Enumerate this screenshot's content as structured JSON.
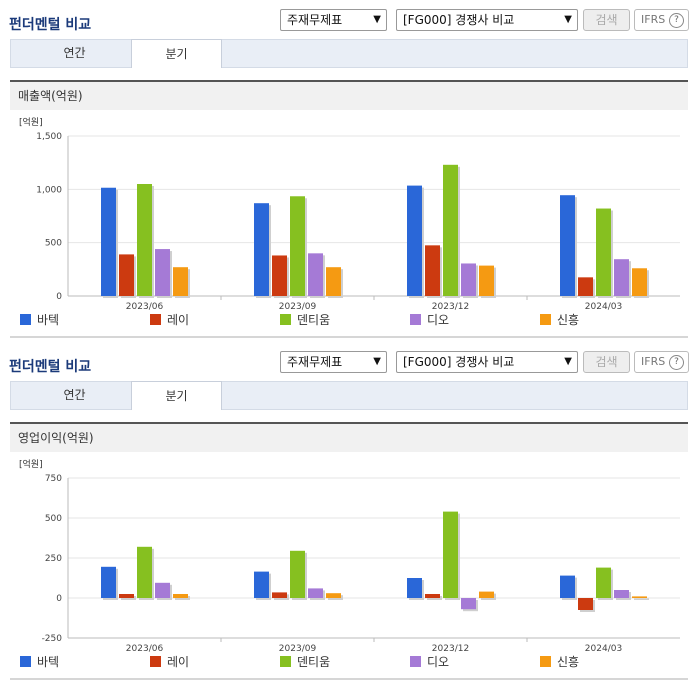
{
  "sections": [
    {
      "title": "펀더멘털 비교",
      "select_type": "주재무제표",
      "select_compare": "[FG000] 경쟁사 비교",
      "search_label": "검색",
      "ifrs_label": "IFRS",
      "help_label": "?",
      "tabs": [
        {
          "label": "연간",
          "active": false
        },
        {
          "label": "분기",
          "active": true
        }
      ],
      "metric": "매출액(억원)",
      "unit": "[억원]"
    },
    {
      "title": "펀더멘털 비교",
      "select_type": "주재무제표",
      "select_compare": "[FG000] 경쟁사 비교",
      "search_label": "검색",
      "ifrs_label": "IFRS",
      "help_label": "?",
      "tabs": [
        {
          "label": "연간",
          "active": false
        },
        {
          "label": "분기",
          "active": true
        }
      ],
      "metric": "영업이익(억원)",
      "unit": "[억원]"
    }
  ],
  "colors": {
    "바텍": "#2a67d8",
    "레이": "#cc3a10",
    "덴티움": "#86c020",
    "디오": "#a57ad6",
    "신흥": "#f59a12"
  },
  "chart_data": [
    {
      "type": "bar",
      "categories": [
        "2023/06",
        "2023/09",
        "2023/12",
        "2024/03"
      ],
      "ylim": [
        0,
        1500
      ],
      "yticks": [
        0,
        500,
        1000,
        1500
      ],
      "ytick_labels": [
        "0",
        "500",
        "1,000",
        "1,500"
      ],
      "series": [
        {
          "name": "바텍",
          "values": [
            1015,
            870,
            1035,
            945
          ]
        },
        {
          "name": "레이",
          "values": [
            390,
            380,
            475,
            175
          ]
        },
        {
          "name": "덴티움",
          "values": [
            1050,
            935,
            1230,
            820
          ]
        },
        {
          "name": "디오",
          "values": [
            440,
            400,
            305,
            345
          ]
        },
        {
          "name": "신흥",
          "values": [
            270,
            270,
            285,
            260
          ]
        }
      ],
      "grid": true,
      "legend": "bottom"
    },
    {
      "type": "bar",
      "categories": [
        "2023/06",
        "2023/09",
        "2023/12",
        "2024/03"
      ],
      "ylim": [
        -250,
        750
      ],
      "yticks": [
        -250,
        0,
        250,
        500,
        750
      ],
      "ytick_labels": [
        "-250",
        "0",
        "250",
        "500",
        "750"
      ],
      "series": [
        {
          "name": "바텍",
          "values": [
            195,
            165,
            125,
            140
          ]
        },
        {
          "name": "레이",
          "values": [
            25,
            35,
            25,
            -75
          ]
        },
        {
          "name": "덴티움",
          "values": [
            320,
            295,
            540,
            190
          ]
        },
        {
          "name": "디오",
          "values": [
            95,
            60,
            -70,
            50
          ]
        },
        {
          "name": "신흥",
          "values": [
            25,
            30,
            40,
            10
          ]
        }
      ],
      "grid": true,
      "legend": "bottom"
    }
  ]
}
